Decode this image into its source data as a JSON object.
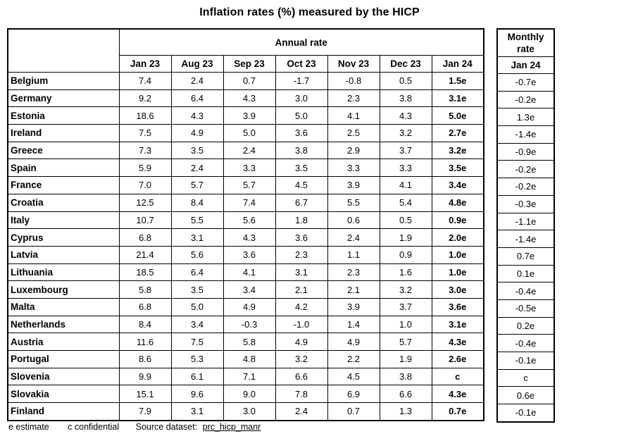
{
  "title": "Inflation rates (%) measured by the HICP",
  "annual": {
    "group_header": "Annual rate",
    "columns": [
      "Jan 23",
      "Aug 23",
      "Sep 23",
      "Oct 23",
      "Nov 23",
      "Dec 23",
      "Jan 24"
    ]
  },
  "monthly": {
    "group_header": "Monthly rate",
    "column": "Jan 24"
  },
  "rows": [
    {
      "country": "Belgium",
      "annual": [
        "7.4",
        "2.4",
        "0.7",
        "-1.7",
        "-0.8",
        "0.5",
        "1.5e"
      ],
      "monthly": "-0.7e"
    },
    {
      "country": "Germany",
      "annual": [
        "9.2",
        "6.4",
        "4.3",
        "3.0",
        "2.3",
        "3.8",
        "3.1e"
      ],
      "monthly": "-0.2e"
    },
    {
      "country": "Estonia",
      "annual": [
        "18.6",
        "4.3",
        "3.9",
        "5.0",
        "4.1",
        "4.3",
        "5.0e"
      ],
      "monthly": "1.3e"
    },
    {
      "country": "Ireland",
      "annual": [
        "7.5",
        "4.9",
        "5.0",
        "3.6",
        "2.5",
        "3.2",
        "2.7e"
      ],
      "monthly": "-1.4e"
    },
    {
      "country": "Greece",
      "annual": [
        "7.3",
        "3.5",
        "2.4",
        "3.8",
        "2.9",
        "3.7",
        "3.2e"
      ],
      "monthly": "-0.9e"
    },
    {
      "country": "Spain",
      "annual": [
        "5.9",
        "2.4",
        "3.3",
        "3.5",
        "3.3",
        "3.3",
        "3.5e"
      ],
      "monthly": "-0.2e"
    },
    {
      "country": "France",
      "annual": [
        "7.0",
        "5.7",
        "5.7",
        "4.5",
        "3.9",
        "4.1",
        "3.4e"
      ],
      "monthly": "-0.2e"
    },
    {
      "country": "Croatia",
      "annual": [
        "12.5",
        "8.4",
        "7.4",
        "6.7",
        "5.5",
        "5.4",
        "4.8e"
      ],
      "monthly": "-0.3e"
    },
    {
      "country": "Italy",
      "annual": [
        "10.7",
        "5.5",
        "5.6",
        "1.8",
        "0.6",
        "0.5",
        "0.9e"
      ],
      "monthly": "-1.1e"
    },
    {
      "country": "Cyprus",
      "annual": [
        "6.8",
        "3.1",
        "4.3",
        "3.6",
        "2.4",
        "1.9",
        "2.0e"
      ],
      "monthly": "-1.4e"
    },
    {
      "country": "Latvia",
      "annual": [
        "21.4",
        "5.6",
        "3.6",
        "2.3",
        "1.1",
        "0.9",
        "1.0e"
      ],
      "monthly": "0.7e"
    },
    {
      "country": "Lithuania",
      "annual": [
        "18.5",
        "6.4",
        "4.1",
        "3.1",
        "2.3",
        "1.6",
        "1.0e"
      ],
      "monthly": "0.1e"
    },
    {
      "country": "Luxembourg",
      "annual": [
        "5.8",
        "3.5",
        "3.4",
        "2.1",
        "2.1",
        "3.2",
        "3.0e"
      ],
      "monthly": "-0.4e"
    },
    {
      "country": "Malta",
      "annual": [
        "6.8",
        "5.0",
        "4.9",
        "4.2",
        "3.9",
        "3.7",
        "3.6e"
      ],
      "monthly": "-0.5e"
    },
    {
      "country": "Netherlands",
      "annual": [
        "8.4",
        "3.4",
        "-0.3",
        "-1.0",
        "1.4",
        "1.0",
        "3.1e"
      ],
      "monthly": "0.2e"
    },
    {
      "country": "Austria",
      "annual": [
        "11.6",
        "7.5",
        "5.8",
        "4.9",
        "4.9",
        "5.7",
        "4.3e"
      ],
      "monthly": "-0.4e"
    },
    {
      "country": "Portugal",
      "annual": [
        "8.6",
        "5.3",
        "4.8",
        "3.2",
        "2.2",
        "1.9",
        "2.6e"
      ],
      "monthly": "-0.1e"
    },
    {
      "country": "Slovenia",
      "annual": [
        "9.9",
        "6.1",
        "7.1",
        "6.6",
        "4.5",
        "3.8",
        "c"
      ],
      "monthly": "c"
    },
    {
      "country": "Slovakia",
      "annual": [
        "15.1",
        "9.6",
        "9.0",
        "7.8",
        "6.9",
        "6.6",
        "4.3e"
      ],
      "monthly": "0.6e"
    },
    {
      "country": "Finland",
      "annual": [
        "7.9",
        "3.1",
        "3.0",
        "2.4",
        "0.7",
        "1.3",
        "0.7e"
      ],
      "monthly": "-0.1e"
    }
  ],
  "footer": {
    "estimate_note": "e estimate",
    "confidential_note": "c confidential",
    "source_label": "Source dataset:",
    "source_link": "prc_hicp_manr"
  },
  "colors": {
    "text": "#000000",
    "border": "#000000",
    "background": "#ffffff"
  }
}
